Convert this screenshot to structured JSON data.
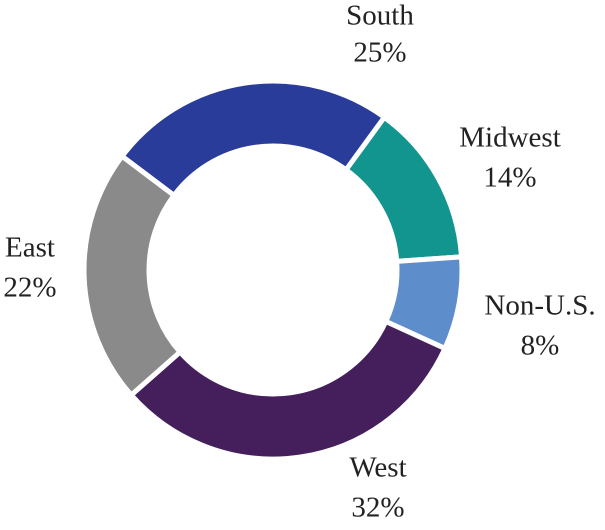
{
  "chart_data": {
    "type": "donut",
    "categories": [
      "South",
      "Midwest",
      "Non-U.S.",
      "West",
      "East"
    ],
    "values": [
      25,
      14,
      8,
      32,
      22
    ],
    "value_labels": [
      "25%",
      "14%",
      "8%",
      "32%",
      "22%"
    ],
    "colors": [
      "#2a3c99",
      "#12958f",
      "#5e8dcb",
      "#451f5b",
      "#8a8a8a"
    ]
  }
}
